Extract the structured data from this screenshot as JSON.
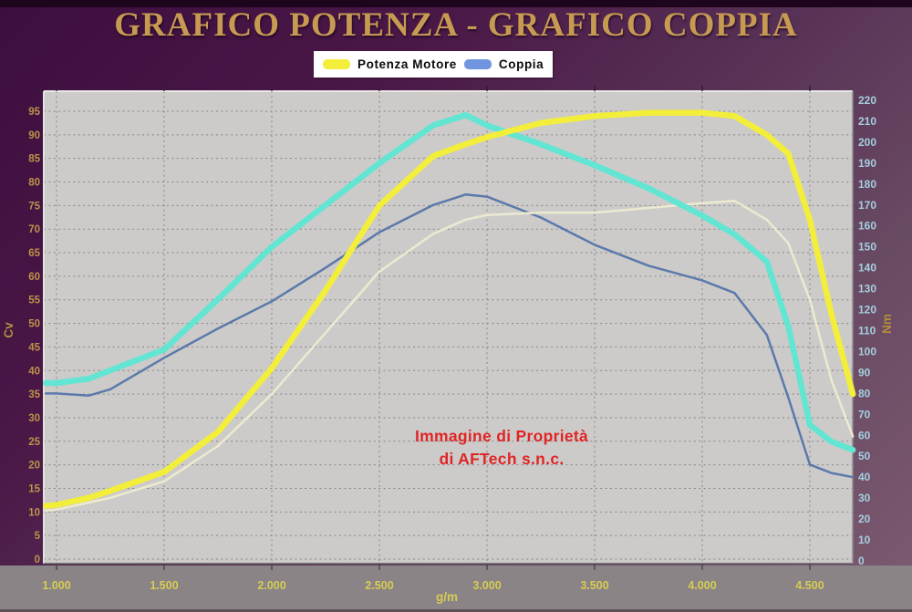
{
  "title": "GRAFICO POTENZA - GRAFICO COPPIA",
  "legend": [
    {
      "label": "Potenza Motore",
      "color": "#f2ee3a"
    },
    {
      "label": "Coppia",
      "color": "#7094e0"
    }
  ],
  "watermark": {
    "line1": "Immagine di Proprietà",
    "line2": "di AFTech s.n.c.",
    "color": "#e02525"
  },
  "colors": {
    "background_top": "#3c0e3e",
    "background_bottom": "#7d5b70",
    "plot_background": "#cccbc9",
    "gridline": "#6f6f78",
    "bottom_band": "#8a8487",
    "title_gold": "#c79a52",
    "left_axis_text": "#bd9348",
    "right_axis_text": "#a5cfe0",
    "x_axis_text": "#d6cc52",
    "watermark_red": "#e02525"
  },
  "chart_data": {
    "type": "line",
    "title": "GRAFICO POTENZA - GRAFICO COPPIA",
    "grid": true,
    "legend_position": "top",
    "x_axis": {
      "label": "g/m",
      "range": [
        941,
        4700
      ],
      "tick_values": [
        1000,
        1500,
        2000,
        2500,
        3000,
        3500,
        4000,
        4500
      ],
      "tick_labels": [
        "1.000",
        "1.500",
        "2.000",
        "2.500",
        "3.000",
        "3.500",
        "4.000",
        "4.500"
      ]
    },
    "y_left": {
      "label": "Cv",
      "range": [
        0,
        95
      ],
      "tick_step": 5,
      "ticks": [
        0,
        5,
        10,
        15,
        20,
        25,
        30,
        35,
        40,
        45,
        50,
        55,
        60,
        65,
        70,
        75,
        80,
        85,
        90,
        95
      ],
      "text_color": "#bd9348"
    },
    "y_right": {
      "label": "Nm",
      "range": [
        0,
        220
      ],
      "tick_step": 10,
      "ticks": [
        0,
        10,
        20,
        30,
        40,
        50,
        60,
        70,
        80,
        90,
        100,
        110,
        120,
        130,
        140,
        150,
        160,
        170,
        180,
        190,
        200,
        210,
        220
      ],
      "text_color": "#a5cfe0"
    },
    "x": [
      950,
      1000,
      1150,
      1250,
      1500,
      1750,
      2000,
      2250,
      2500,
      2750,
      2900,
      3000,
      3250,
      3500,
      3750,
      4000,
      4150,
      4300,
      4400,
      4500,
      4600,
      4700
    ],
    "series": [
      {
        "name": "Potenza Motore",
        "axis": "left",
        "unit": "Cv",
        "color": "#f2ee3a",
        "width": 6.5,
        "values": [
          11.3,
          11.5,
          13,
          14.5,
          18.5,
          27,
          40.5,
          57,
          75,
          85.5,
          88,
          89.5,
          92.5,
          94,
          94.7,
          94.7,
          94,
          90,
          86,
          72,
          52,
          35
        ]
      },
      {
        "name": "Coppia",
        "axis": "right",
        "unit": "Nm",
        "color": "#62e5d2",
        "width": 6.5,
        "values": [
          85,
          85,
          87,
          91,
          101,
          125,
          150,
          170,
          190,
          208,
          213,
          208,
          199,
          189,
          178,
          165,
          156,
          143,
          112,
          65,
          57,
          53
        ]
      },
      {
        "name": "unlabeled-thin-pale-curve",
        "axis": "left",
        "unit": "Cv",
        "color": "#edead0",
        "width": 2.5,
        "values": [
          10.3,
          10.5,
          12,
          13,
          16.5,
          24,
          35,
          48,
          61,
          69,
          72,
          73,
          73.5,
          73.5,
          74.5,
          75.5,
          76,
          72,
          67,
          55,
          38,
          26
        ]
      },
      {
        "name": "unlabeled-thin-blue-curve",
        "axis": "right",
        "unit": "Nm",
        "color": "#5b79ab",
        "width": 2.5,
        "values": [
          80,
          80,
          79,
          82,
          97,
          111,
          124,
          140,
          157,
          170,
          175,
          174,
          164,
          151,
          141,
          134,
          128,
          108,
          78,
          46,
          42,
          40
        ]
      }
    ]
  }
}
